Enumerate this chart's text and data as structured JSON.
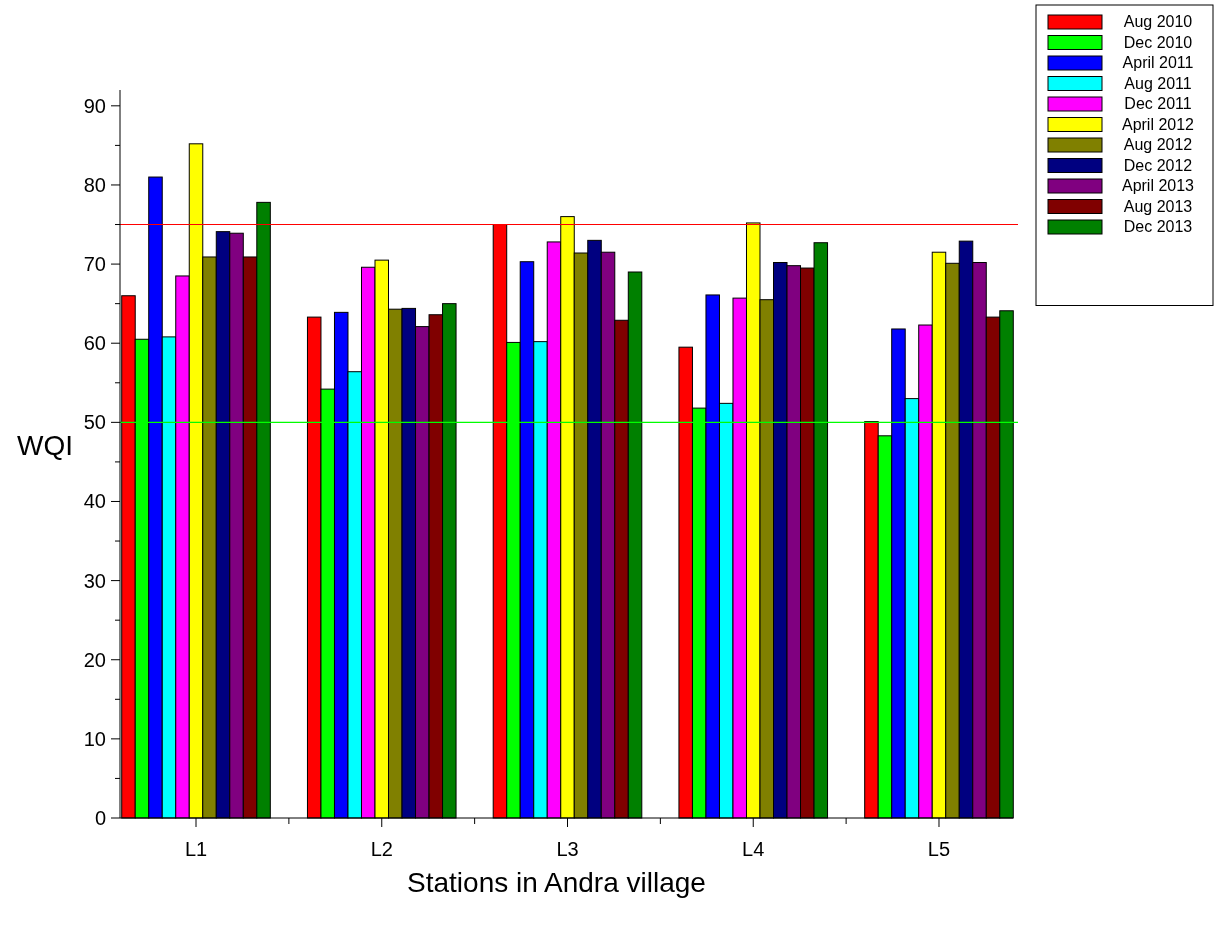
{
  "chart_data": {
    "type": "bar",
    "xlabel": "Stations in Andra village",
    "ylabel": "WQI",
    "categories": [
      "L1",
      "L2",
      "L3",
      "L4",
      "L5"
    ],
    "series": [
      {
        "name": "Aug 2010",
        "color": "#ff0000",
        "values": [
          66,
          63.3,
          75,
          59.5,
          50.1
        ]
      },
      {
        "name": "Dec 2010",
        "color": "#00ff00",
        "values": [
          60.5,
          54.2,
          60.1,
          51.8,
          48.3
        ]
      },
      {
        "name": "April 2011",
        "color": "#0000ff",
        "values": [
          81,
          63.9,
          70.3,
          66.1,
          61.8
        ]
      },
      {
        "name": "Aug 2011",
        "color": "#00ffff",
        "values": [
          60.8,
          56.4,
          60.2,
          52.4,
          53
        ]
      },
      {
        "name": "Dec 2011",
        "color": "#ff00ff",
        "values": [
          68.5,
          69.6,
          72.8,
          65.7,
          62.3
        ]
      },
      {
        "name": "April 2012",
        "color": "#ffff00",
        "values": [
          85.2,
          70.5,
          76,
          75.2,
          71.5
        ]
      },
      {
        "name": "Aug 2012",
        "color": "#808000",
        "values": [
          70.9,
          64.3,
          71.4,
          65.5,
          70.1
        ]
      },
      {
        "name": "Dec 2012",
        "color": "#000080",
        "values": [
          74.1,
          64.4,
          73,
          70.2,
          72.9
        ]
      },
      {
        "name": "April 2013",
        "color": "#800080",
        "values": [
          73.9,
          62.1,
          71.5,
          69.8,
          70.2
        ]
      },
      {
        "name": "Aug 2013",
        "color": "#800000",
        "values": [
          70.9,
          63.6,
          62.9,
          69.5,
          63.3
        ]
      },
      {
        "name": "Dec 2013",
        "color": "#008000",
        "values": [
          77.8,
          65,
          69,
          72.7,
          64.1
        ]
      }
    ],
    "ylim": [
      0,
      92
    ],
    "yticks": [
      0,
      {
        "value": 5,
        "label": null
      },
      10,
      {
        "value": 15,
        "label": null
      },
      20,
      {
        "value": 25,
        "label": null
      },
      30,
      {
        "value": 35,
        "label": null
      },
      40,
      {
        "value": 45,
        "label": null
      },
      50,
      {
        "value": 55,
        "label": null
      },
      60,
      {
        "value": 65,
        "label": null
      },
      70,
      {
        "value": 75,
        "label": null
      },
      80,
      {
        "value": 85,
        "label": null
      },
      90
    ],
    "ref_lines": [
      {
        "axis": "y",
        "value": 75,
        "color": "#ff0000"
      },
      {
        "axis": "y",
        "value": 50,
        "color": "#00ff00"
      }
    ],
    "legend": "top right",
    "grid": false
  }
}
